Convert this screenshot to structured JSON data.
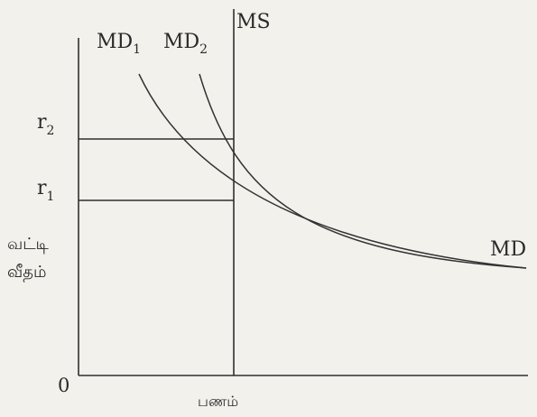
{
  "labels": {
    "ms": "MS",
    "md1_base": "MD",
    "md1_sub": "1",
    "md2_base": "MD",
    "md2_sub": "2",
    "r2_base": "r",
    "r2_sub": "2",
    "r1_base": "r",
    "r1_sub": "1",
    "y_axis_line1": "வட்டி",
    "y_axis_line2": "வீதம்",
    "x_axis": "பணம்",
    "origin": "0",
    "md_right": "MD"
  },
  "colors": {
    "background": "#f2f1ec",
    "ink": "#2f2f2f"
  }
}
